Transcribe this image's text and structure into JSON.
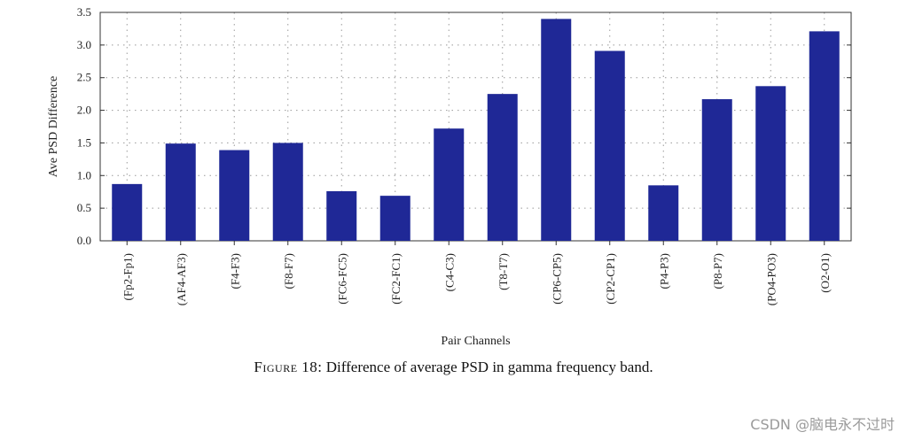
{
  "chart_data": {
    "type": "bar",
    "title": "",
    "xlabel": "Pair Channels",
    "ylabel": "Ave PSD Difference",
    "ylim": [
      0,
      3.5
    ],
    "yticks": [
      "0.0",
      "0.5",
      "1.0",
      "1.5",
      "2.0",
      "2.5",
      "3.0",
      "3.5"
    ],
    "yticks_values": [
      0,
      0.5,
      1.0,
      1.5,
      2.0,
      2.5,
      3.0,
      3.5
    ],
    "categories": [
      "(Fp2-Fp1)",
      "(AF4-AF3)",
      "(F4-F3)",
      "(F8-F7)",
      "(FC6-FC5)",
      "(FC2-FC1)",
      "(C4-C3)",
      "(T8-T7)",
      "(CP6-CP5)",
      "(CP2-CP1)",
      "(P4-P3)",
      "(P8-P7)",
      "(PO4-PO3)",
      "(O2-O1)"
    ],
    "values": [
      0.87,
      1.49,
      1.39,
      1.5,
      0.76,
      0.69,
      1.72,
      2.25,
      3.4,
      2.91,
      0.85,
      2.17,
      2.37,
      3.21
    ],
    "grid": true,
    "bar_color": "#1f2896"
  },
  "caption": {
    "figure_label": "Figure 18:",
    "text": "Difference of average PSD in gamma frequency band."
  },
  "watermark": "CSDN @脑电永不过时"
}
